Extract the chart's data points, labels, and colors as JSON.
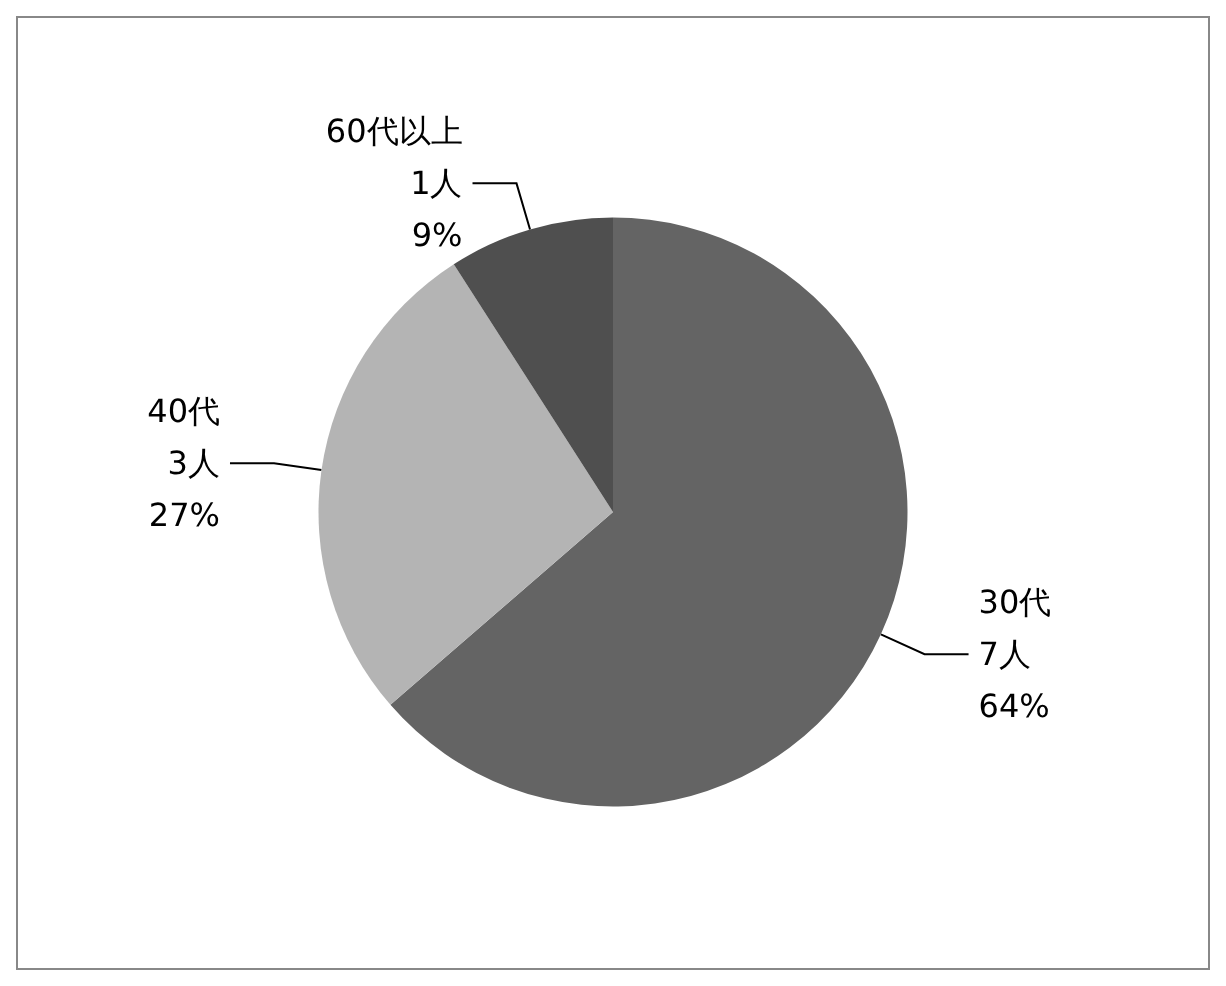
{
  "chart_data": {
    "type": "pie",
    "categories": [
      "30代",
      "40代",
      "60代以上"
    ],
    "values": [
      7,
      3,
      1
    ],
    "colors": [
      "#646464",
      "#b4b4b4",
      "#4f4f4f"
    ],
    "value_labels": [
      "7人\n64%",
      "3人\n27%",
      "1人\n9%"
    ],
    "legend": false
  }
}
